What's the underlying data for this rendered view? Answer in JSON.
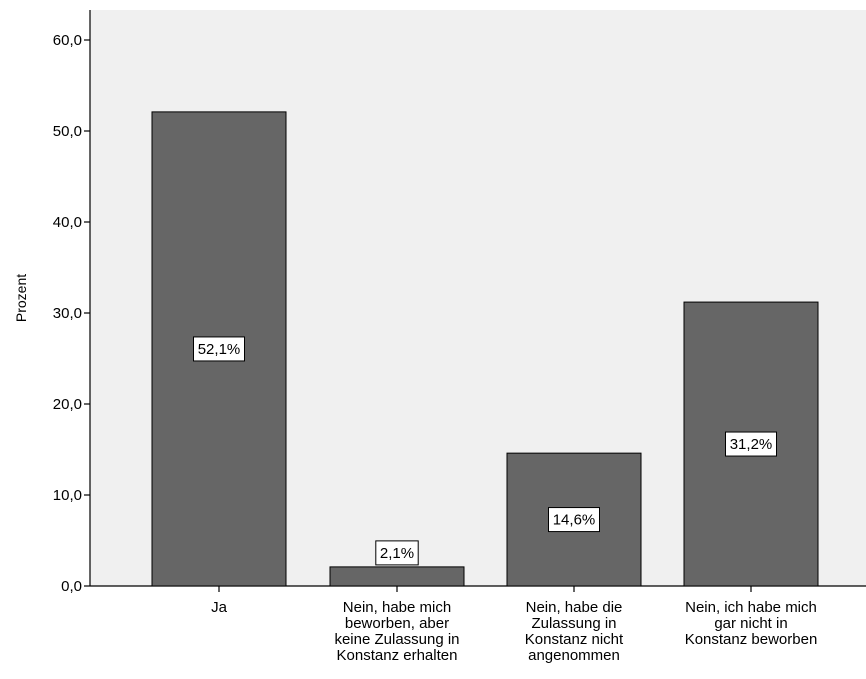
{
  "chart_data": {
    "type": "bar",
    "title": "",
    "xlabel": "",
    "ylabel": "Prozent",
    "ylim": [
      0,
      60
    ],
    "yticks": [
      0,
      10,
      20,
      30,
      40,
      50,
      60
    ],
    "ytick_labels": [
      "0,0",
      "10,0",
      "20,0",
      "30,0",
      "40,0",
      "50,0",
      "60,0"
    ],
    "categories": [
      [
        "Ja"
      ],
      [
        "Nein, habe mich",
        "beworben, aber",
        "keine Zulassung in",
        "Konstanz erhalten"
      ],
      [
        "Nein, habe die",
        "Zulassung in",
        "Konstanz nicht",
        "angenommen"
      ],
      [
        "Nein, ich habe mich",
        "gar nicht in",
        "Konstanz beworben"
      ]
    ],
    "values": [
      52.1,
      2.1,
      14.6,
      31.2
    ],
    "data_labels": [
      "52,1%",
      "2,1%",
      "14,6%",
      "31,2%"
    ],
    "grid": false,
    "legend": "none",
    "colors": {
      "plot_background": "#f0f0f0",
      "bar_fill": "#666666",
      "bar_stroke": "#000000",
      "axis": "#000000"
    }
  }
}
